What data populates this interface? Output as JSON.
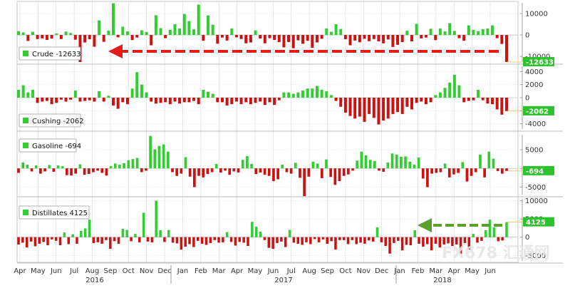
{
  "colors": {
    "positive": "#33cc33",
    "negative": "#cc1111",
    "grid": "#d8d8d8",
    "axis_label_bg": "#2ec22e",
    "arrow_red": "#e31b1b",
    "arrow_green": "#5aa02c",
    "watermark": "#e6e6e6"
  },
  "x_axis": {
    "months": [
      "Apr",
      "May",
      "Jun",
      "Jul",
      "Aug",
      "Sep",
      "Oct",
      "Nov",
      "Dec",
      "Jan",
      "Feb",
      "Mar",
      "Apr",
      "May",
      "Jun",
      "Jul",
      "Aug",
      "Sep",
      "Oct",
      "Nov",
      "Dec",
      "Jan",
      "Feb",
      "Mar",
      "Apr",
      "May",
      "Jun"
    ],
    "years": [
      "2016",
      "2017",
      "2018"
    ]
  },
  "watermark": {
    "text": "FX678 汇通网"
  },
  "chart_data": [
    {
      "type": "bar",
      "name": "Crude",
      "legend": "Crude -12633",
      "last_value_label": "-12633",
      "ylim": [
        -12633,
        15000
      ],
      "yticks": [
        -10000,
        0,
        10000
      ],
      "ytick_labels": [
        "-10000",
        "0",
        "10000"
      ],
      "annotation": "arrow pointing to latest weekly draw",
      "values": [
        1800,
        1200,
        -2800,
        1500,
        -1900,
        -1600,
        -2300,
        -1700,
        700,
        -1900,
        1600,
        900,
        -2200,
        -12633,
        -3500,
        -2000,
        -5500,
        6800,
        -3200,
        2000,
        14800,
        -1100,
        3900,
        1700,
        -2400,
        -1200,
        2200,
        1400,
        -4800,
        9200,
        3200,
        -1500,
        2400,
        5000,
        3000,
        9800,
        6500,
        2600,
        14200,
        -2700,
        9100,
        4800,
        -4100,
        -1200,
        -2600,
        3000,
        -1100,
        -1900,
        -3900,
        -3500,
        2100,
        -1700,
        -3900,
        -1500,
        -2300,
        -3300,
        -5800,
        -3300,
        -6200,
        -2500,
        -4100,
        -2700,
        -6000,
        -3500,
        -1800,
        3000,
        1500,
        5000,
        2800,
        -2000,
        -4800,
        -2600,
        -3400,
        -1800,
        -2900,
        -1900,
        -3000,
        -3900,
        -2100,
        -5600,
        -4600,
        -3300,
        2000,
        -3000,
        5200,
        -1600,
        -1200,
        2900,
        -2400,
        3000,
        1700,
        5500,
        1900,
        -1500,
        -2700,
        4500,
        2400,
        1800,
        2700,
        3000,
        4500,
        -1500,
        -4200,
        -12633
      ]
    },
    {
      "type": "bar",
      "name": "Cushing",
      "legend": "Cushing -2062",
      "last_value_label": "-2062",
      "ylim": [
        -4800,
        4800
      ],
      "yticks": [
        -4000,
        -2000,
        0,
        2000,
        4000
      ],
      "ytick_labels": [
        "-4000",
        "-2000",
        "0",
        "2000",
        "4000"
      ],
      "values": [
        1200,
        1900,
        800,
        1200,
        -800,
        -600,
        -500,
        -1000,
        -800,
        -300,
        -600,
        -300,
        1100,
        -600,
        -500,
        -400,
        -600,
        1000,
        -600,
        300,
        -1200,
        -1700,
        -700,
        -1000,
        1400,
        3900,
        2000,
        800,
        -600,
        -900,
        -800,
        -700,
        -1000,
        -600,
        -900,
        -700,
        -700,
        -500,
        -1000,
        1200,
        900,
        600,
        -700,
        -700,
        -1200,
        -1000,
        -600,
        -1000,
        -700,
        -1000,
        -800,
        -600,
        -1100,
        -700,
        -1100,
        -400,
        800,
        800,
        600,
        800,
        1100,
        1400,
        1400,
        1800,
        1200,
        1000,
        400,
        -500,
        -1400,
        -2300,
        -2800,
        -3200,
        -2900,
        -3700,
        -2500,
        -3100,
        -4100,
        -3500,
        -3200,
        -2500,
        -2200,
        -2500,
        -1400,
        -1800,
        -800,
        -600,
        -1000,
        -700,
        400,
        800,
        1500,
        2300,
        3500,
        1900,
        -700,
        -500,
        -400,
        1200,
        -400,
        -900,
        -1000,
        -1800,
        -2600,
        -2062
      ]
    },
    {
      "type": "bar",
      "name": "Gasoline",
      "legend": "Gasoline -694",
      "last_value_label": "-694",
      "ylim": [
        -7000,
        9000
      ],
      "yticks": [
        -5000,
        0,
        5000
      ],
      "ytick_labels": [
        "-5000",
        "0",
        "5000"
      ],
      "values": [
        -1200,
        1600,
        1000,
        -800,
        800,
        -1400,
        -800,
        900,
        -900,
        800,
        600,
        -1800,
        -1900,
        -1400,
        1100,
        -1700,
        -1500,
        -1000,
        -600,
        -1200,
        -1900,
        600,
        1300,
        1000,
        1400,
        2200,
        2500,
        2800,
        -1000,
        -600,
        8700,
        5100,
        6000,
        6400,
        4500,
        -1000,
        -2000,
        -1400,
        3000,
        -2200,
        -5000,
        -2000,
        -2400,
        -1500,
        -1000,
        1200,
        -1100,
        -600,
        -1700,
        -800,
        -1100,
        2300,
        3300,
        1200,
        -1500,
        -1100,
        -1700,
        -2000,
        -3400,
        -2900,
        1000,
        -1000,
        -1400,
        1500,
        -2500,
        -7400,
        -2200,
        1800,
        1300,
        -2600,
        2400,
        -2300,
        -4400,
        -3400,
        -2000,
        -1600,
        -600,
        2100,
        4500,
        3500,
        2300,
        2000,
        -600,
        -900,
        1600,
        4000,
        3700,
        3100,
        3200,
        1800,
        1000,
        2900,
        -2700,
        -5000,
        -1400,
        -1200,
        -1000,
        1300,
        -2400,
        -1600,
        -1200,
        1700,
        -3500,
        -2000,
        -1000,
        3700,
        -2400,
        4500,
        2600,
        -700,
        -1400,
        -694
      ]
    },
    {
      "type": "bar",
      "name": "Distillates",
      "legend": "Distillates 4125",
      "last_value_label": "4125",
      "ylim": [
        -6500,
        10500
      ],
      "yticks": [
        -5000,
        0,
        5000,
        10000
      ],
      "ytick_labels": [
        "-5000",
        "0",
        "5000",
        "10000"
      ],
      "annotation": "arrow pointing to latest weekly build",
      "values": [
        -2000,
        -1500,
        -2800,
        -1200,
        -2500,
        -1800,
        -1300,
        -2200,
        -600,
        -1000,
        -2200,
        1300,
        -1900,
        800,
        -1800,
        1700,
        2400,
        4800,
        -1600,
        -1400,
        -1800,
        -800,
        -3200,
        -1100,
        -1800,
        2300,
        2000,
        -1100,
        900,
        -1400,
        6700,
        -1200,
        -1400,
        10000,
        1900,
        -1300,
        2000,
        -1500,
        -1700,
        -3400,
        -2600,
        -1900,
        -2700,
        -1000,
        -1800,
        -2100,
        -1600,
        -800,
        -1500,
        -1400,
        1400,
        -1300,
        -2300,
        -1300,
        -1500,
        -2400,
        4200,
        2900,
        1500,
        -800,
        -2900,
        -3200,
        -1600,
        -1200,
        -2700,
        2000,
        -1500,
        -1800,
        -2100,
        -1400,
        -1900,
        -500,
        -1400,
        -600,
        -1800,
        -1100,
        -3400,
        -800,
        -800,
        -1900,
        -800,
        -1900,
        -1500,
        -1800,
        -900,
        -1200,
        2700,
        -1400,
        -2400,
        -4500,
        -1600,
        -1000,
        -3600,
        -2100,
        -2200,
        1900,
        -1800,
        -2600,
        -1900,
        -3600,
        -1800,
        -2800,
        -2000,
        -1700,
        -2400,
        -2000,
        -4600,
        -1600,
        -3400,
        900,
        -1500,
        -1000,
        1900,
        4800,
        2700,
        -1100,
        -900,
        4125
      ]
    }
  ]
}
